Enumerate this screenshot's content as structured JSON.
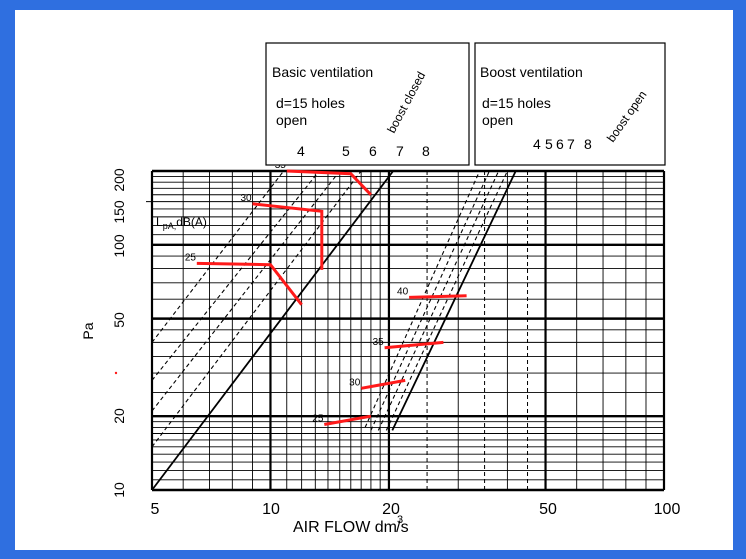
{
  "colors": {
    "frame": "#2f6fe0",
    "paper": "#ffffff",
    "grid": "#000000",
    "sound": "#ff1a1a"
  },
  "chart_data": {
    "type": "line",
    "xscale": "log",
    "yscale": "log",
    "xlim": [
      5,
      100
    ],
    "ylim": [
      10,
      200
    ],
    "xlabel": "AIR FLOW  dm",
    "xlabel_super": "3",
    "xlabel_unit": "/s",
    "ylabel": "Pa",
    "x_ticks": [
      "5",
      "10",
      "20",
      "50",
      "100"
    ],
    "y_ticks": [
      "10",
      "20",
      "50",
      "100",
      "150",
      "200"
    ],
    "inner_label": {
      "main": "L",
      "sub": "pA,",
      "rest": "dB(A)"
    },
    "boxes": [
      {
        "title": "Basic ventilation",
        "line1": "d=15 holes",
        "line2": "open",
        "rotated": "boost closed"
      },
      {
        "title": "Boost ventilation",
        "line1": "d=15 holes",
        "line2": "open",
        "rotated": "boost open"
      }
    ],
    "basic_curve_labels": [
      "4",
      "5",
      "6",
      "7",
      "8"
    ],
    "boost_curve_labels": [
      "4",
      "5",
      "6",
      "7",
      "8"
    ],
    "series": [
      {
        "group": "basic",
        "label": "4",
        "points": [
          [
            5.0,
            40
          ],
          [
            10.8,
            200
          ]
        ]
      },
      {
        "group": "basic",
        "label": "5",
        "points": [
          [
            5.0,
            28
          ],
          [
            13.3,
            200
          ]
        ]
      },
      {
        "group": "basic",
        "label": "6",
        "points": [
          [
            5.0,
            21
          ],
          [
            15.0,
            200
          ]
        ]
      },
      {
        "group": "basic",
        "label": "7",
        "points": [
          [
            5.0,
            15
          ],
          [
            17.0,
            200
          ]
        ]
      },
      {
        "group": "basic",
        "label": "8",
        "points": [
          [
            5.0,
            10
          ],
          [
            20.5,
            200
          ]
        ]
      },
      {
        "group": "boost",
        "label": "4",
        "points": [
          [
            17.4,
            18
          ],
          [
            34.0,
            200
          ]
        ]
      },
      {
        "group": "boost",
        "label": "5",
        "points": [
          [
            18.0,
            17.5
          ],
          [
            36.0,
            200
          ]
        ]
      },
      {
        "group": "boost",
        "label": "6",
        "points": [
          [
            18.8,
            17.5
          ],
          [
            38.0,
            200
          ]
        ]
      },
      {
        "group": "boost",
        "label": "7",
        "points": [
          [
            19.7,
            17.5
          ],
          [
            40.0,
            200
          ]
        ]
      },
      {
        "group": "boost",
        "label": "8",
        "points": [
          [
            20.4,
            17.5
          ],
          [
            42.0,
            200
          ]
        ]
      }
    ],
    "sound_levels": [
      {
        "label": "35",
        "points": [
          [
            11.0,
            200
          ],
          [
            16.0,
            195
          ],
          [
            18.0,
            160
          ]
        ]
      },
      {
        "label": "30",
        "points": [
          [
            9.0,
            147
          ],
          [
            13.5,
            137
          ],
          [
            13.5,
            79
          ]
        ]
      },
      {
        "label": "25",
        "points": [
          [
            6.5,
            84
          ],
          [
            10.0,
            83
          ],
          [
            12.0,
            57
          ]
        ]
      },
      {
        "label": "40",
        "points": [
          [
            22.5,
            61
          ],
          [
            31.5,
            62
          ]
        ]
      },
      {
        "label": "35",
        "points": [
          [
            19.5,
            38
          ],
          [
            27.5,
            40
          ]
        ]
      },
      {
        "label": "30",
        "points": [
          [
            17.0,
            26
          ],
          [
            22.0,
            28
          ]
        ]
      },
      {
        "label": "25",
        "points": [
          [
            13.7,
            18.5
          ],
          [
            18.0,
            20
          ]
        ]
      }
    ]
  }
}
